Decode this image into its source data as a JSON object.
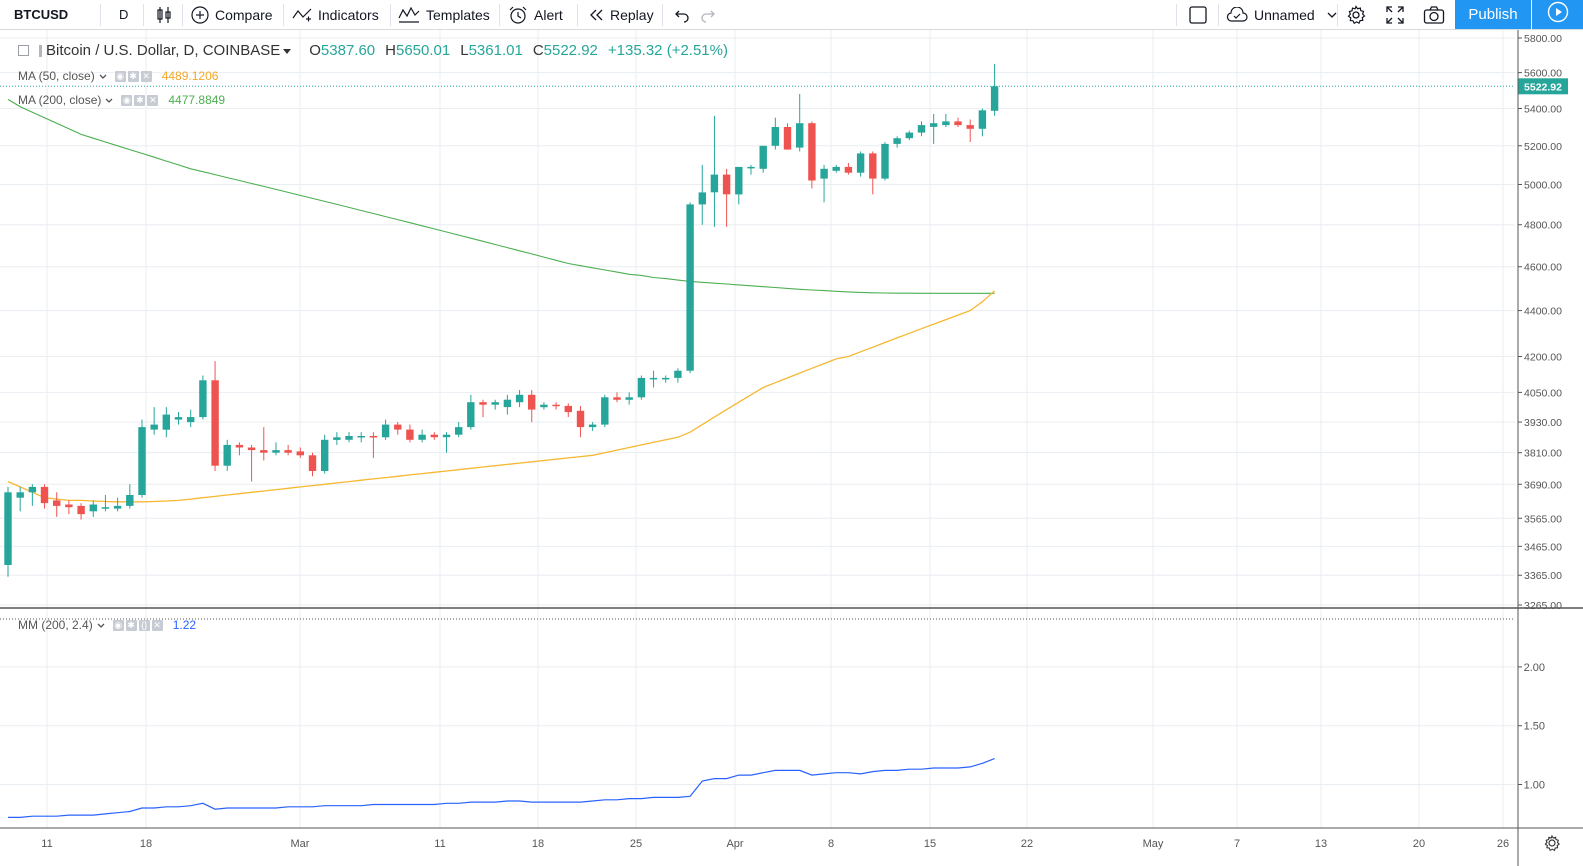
{
  "toolbar": {
    "symbol": "BTCUSD",
    "interval": "D",
    "compare": "Compare",
    "indicators": "Indicators",
    "templates": "Templates",
    "alert": "Alert",
    "replay": "Replay",
    "layout_name": "Unnamed",
    "publish": "Publish"
  },
  "legend": {
    "title": "Bitcoin / U.S. Dollar, D, COINBASE",
    "o_key": "O",
    "o_val": "5387.60",
    "h_key": "H",
    "h_val": "5650.01",
    "l_key": "L",
    "l_val": "5361.01",
    "c_key": "C",
    "c_val": "5522.92",
    "change": "+135.32 (+2.51%)",
    "ma50_label": "MA (50, close)",
    "ma50_value": "4489.1206",
    "ma200_label": "MA (200, close)",
    "ma200_value": "4477.8849",
    "mm_label": "MM (200, 2.4)",
    "mm_value": "1.22"
  },
  "colors": {
    "up": "#26a69a",
    "down": "#ef5350",
    "ma50": "#f7b731",
    "ma200": "#4caf50",
    "mm": "#2962ff",
    "grid": "#e9eef2",
    "accent": "#2196f3"
  },
  "price_axis_labels": [
    "5800.00",
    "5600.00",
    "5400.00",
    "5200.00",
    "5000.00",
    "4800.00",
    "4600.00",
    "4400.00",
    "4200.00",
    "4050.00",
    "3930.00",
    "3810.00",
    "3690.00",
    "3565.00",
    "3465.00",
    "3365.00",
    "3265.00"
  ],
  "last_price_label": "5522.92",
  "indicator_axis_labels": [
    "2.00",
    "1.50",
    "1.00"
  ],
  "time_axis_labels": [
    "11",
    "18",
    "Mar",
    "11",
    "18",
    "25",
    "Apr",
    "8",
    "15",
    "22",
    "May",
    "7",
    "13",
    "20",
    "26"
  ],
  "chart_data": {
    "type": "candlestick",
    "title": "Bitcoin / U.S. Dollar, D, COINBASE",
    "price_scale": "log",
    "ylim": [
      3265,
      5800
    ],
    "candles": [
      {
        "o": 3400,
        "h": 3680,
        "l": 3360,
        "c": 3660
      },
      {
        "o": 3640,
        "h": 3680,
        "l": 3590,
        "c": 3660
      },
      {
        "o": 3660,
        "h": 3690,
        "l": 3610,
        "c": 3680
      },
      {
        "o": 3680,
        "h": 3690,
        "l": 3600,
        "c": 3620
      },
      {
        "o": 3630,
        "h": 3660,
        "l": 3570,
        "c": 3610
      },
      {
        "o": 3615,
        "h": 3630,
        "l": 3580,
        "c": 3605
      },
      {
        "o": 3610,
        "h": 3620,
        "l": 3560,
        "c": 3580
      },
      {
        "o": 3590,
        "h": 3630,
        "l": 3570,
        "c": 3615
      },
      {
        "o": 3600,
        "h": 3650,
        "l": 3590,
        "c": 3605
      },
      {
        "o": 3600,
        "h": 3640,
        "l": 3590,
        "c": 3610
      },
      {
        "o": 3610,
        "h": 3690,
        "l": 3600,
        "c": 3650
      },
      {
        "o": 3650,
        "h": 3940,
        "l": 3640,
        "c": 3910
      },
      {
        "o": 3900,
        "h": 3990,
        "l": 3880,
        "c": 3920
      },
      {
        "o": 3900,
        "h": 3990,
        "l": 3870,
        "c": 3960
      },
      {
        "o": 3940,
        "h": 3970,
        "l": 3920,
        "c": 3950
      },
      {
        "o": 3930,
        "h": 3980,
        "l": 3910,
        "c": 3950
      },
      {
        "o": 3950,
        "h": 4120,
        "l": 3940,
        "c": 4100
      },
      {
        "o": 4100,
        "h": 4180,
        "l": 3740,
        "c": 3760
      },
      {
        "o": 3760,
        "h": 3860,
        "l": 3740,
        "c": 3840
      },
      {
        "o": 3840,
        "h": 3850,
        "l": 3800,
        "c": 3830
      },
      {
        "o": 3830,
        "h": 3840,
        "l": 3700,
        "c": 3820
      },
      {
        "o": 3820,
        "h": 3910,
        "l": 3780,
        "c": 3810
      },
      {
        "o": 3810,
        "h": 3850,
        "l": 3800,
        "c": 3820
      },
      {
        "o": 3820,
        "h": 3840,
        "l": 3800,
        "c": 3810
      },
      {
        "o": 3815,
        "h": 3830,
        "l": 3790,
        "c": 3800
      },
      {
        "o": 3800,
        "h": 3810,
        "l": 3720,
        "c": 3740
      },
      {
        "o": 3740,
        "h": 3880,
        "l": 3730,
        "c": 3860
      },
      {
        "o": 3860,
        "h": 3890,
        "l": 3840,
        "c": 3870
      },
      {
        "o": 3860,
        "h": 3890,
        "l": 3850,
        "c": 3875
      },
      {
        "o": 3870,
        "h": 3890,
        "l": 3850,
        "c": 3875
      },
      {
        "o": 3875,
        "h": 3890,
        "l": 3790,
        "c": 3870
      },
      {
        "o": 3870,
        "h": 3940,
        "l": 3860,
        "c": 3920
      },
      {
        "o": 3920,
        "h": 3930,
        "l": 3880,
        "c": 3900
      },
      {
        "o": 3900,
        "h": 3920,
        "l": 3850,
        "c": 3860
      },
      {
        "o": 3860,
        "h": 3900,
        "l": 3850,
        "c": 3880
      },
      {
        "o": 3880,
        "h": 3890,
        "l": 3860,
        "c": 3870
      },
      {
        "o": 3870,
        "h": 3890,
        "l": 3810,
        "c": 3880
      },
      {
        "o": 3880,
        "h": 3930,
        "l": 3870,
        "c": 3910
      },
      {
        "o": 3910,
        "h": 4040,
        "l": 3900,
        "c": 4010
      },
      {
        "o": 4010,
        "h": 4020,
        "l": 3950,
        "c": 4000
      },
      {
        "o": 4000,
        "h": 4020,
        "l": 3980,
        "c": 4010
      },
      {
        "o": 3990,
        "h": 4040,
        "l": 3960,
        "c": 4020
      },
      {
        "o": 4010,
        "h": 4060,
        "l": 3990,
        "c": 4040
      },
      {
        "o": 4040,
        "h": 4060,
        "l": 3930,
        "c": 3980
      },
      {
        "o": 3990,
        "h": 4010,
        "l": 3980,
        "c": 4000
      },
      {
        "o": 4000,
        "h": 4010,
        "l": 3980,
        "c": 3995
      },
      {
        "o": 3995,
        "h": 4005,
        "l": 3950,
        "c": 3970
      },
      {
        "o": 3975,
        "h": 3995,
        "l": 3870,
        "c": 3910
      },
      {
        "o": 3910,
        "h": 3930,
        "l": 3895,
        "c": 3920
      },
      {
        "o": 3920,
        "h": 4040,
        "l": 3910,
        "c": 4030
      },
      {
        "o": 4030,
        "h": 4050,
        "l": 4010,
        "c": 4020
      },
      {
        "o": 4020,
        "h": 4050,
        "l": 4000,
        "c": 4030
      },
      {
        "o": 4030,
        "h": 4120,
        "l": 4020,
        "c": 4110
      },
      {
        "o": 4110,
        "h": 4140,
        "l": 4070,
        "c": 4110
      },
      {
        "o": 4105,
        "h": 4120,
        "l": 4090,
        "c": 4110
      },
      {
        "o": 4110,
        "h": 4150,
        "l": 4090,
        "c": 4140
      },
      {
        "o": 4140,
        "h": 4910,
        "l": 4130,
        "c": 4900
      },
      {
        "o": 4900,
        "h": 5100,
        "l": 4800,
        "c": 4960
      },
      {
        "o": 4960,
        "h": 5360,
        "l": 4790,
        "c": 5050
      },
      {
        "o": 5050,
        "h": 5080,
        "l": 4790,
        "c": 4950
      },
      {
        "o": 4950,
        "h": 5080,
        "l": 4900,
        "c": 5090
      },
      {
        "o": 5090,
        "h": 5100,
        "l": 5050,
        "c": 5090
      },
      {
        "o": 5080,
        "h": 5200,
        "l": 5060,
        "c": 5200
      },
      {
        "o": 5200,
        "h": 5350,
        "l": 5180,
        "c": 5300
      },
      {
        "o": 5300,
        "h": 5320,
        "l": 5180,
        "c": 5180
      },
      {
        "o": 5190,
        "h": 5480,
        "l": 5170,
        "c": 5320
      },
      {
        "o": 5320,
        "h": 5330,
        "l": 4980,
        "c": 5020
      },
      {
        "o": 5030,
        "h": 5100,
        "l": 4910,
        "c": 5080
      },
      {
        "o": 5070,
        "h": 5100,
        "l": 5060,
        "c": 5090
      },
      {
        "o": 5090,
        "h": 5110,
        "l": 5050,
        "c": 5060
      },
      {
        "o": 5060,
        "h": 5170,
        "l": 5040,
        "c": 5160
      },
      {
        "o": 5160,
        "h": 5170,
        "l": 4950,
        "c": 5030
      },
      {
        "o": 5030,
        "h": 5220,
        "l": 5020,
        "c": 5210
      },
      {
        "o": 5210,
        "h": 5250,
        "l": 5190,
        "c": 5240
      },
      {
        "o": 5240,
        "h": 5280,
        "l": 5230,
        "c": 5270
      },
      {
        "o": 5270,
        "h": 5330,
        "l": 5250,
        "c": 5310
      },
      {
        "o": 5300,
        "h": 5370,
        "l": 5210,
        "c": 5320
      },
      {
        "o": 5310,
        "h": 5370,
        "l": 5300,
        "c": 5330
      },
      {
        "o": 5330,
        "h": 5350,
        "l": 5300,
        "c": 5310
      },
      {
        "o": 5310,
        "h": 5340,
        "l": 5220,
        "c": 5290
      },
      {
        "o": 5290,
        "h": 5400,
        "l": 5250,
        "c": 5390
      },
      {
        "o": 5387.6,
        "h": 5650.01,
        "l": 5361.01,
        "c": 5522.92
      }
    ],
    "ma50": [
      3700,
      3680,
      3660,
      3640,
      3635,
      3630,
      3630,
      3628,
      3626,
      3625,
      3625,
      3625,
      3626,
      3628,
      3630,
      3635,
      3640,
      3645,
      3650,
      3655,
      3660,
      3665,
      3670,
      3675,
      3680,
      3685,
      3690,
      3695,
      3700,
      3705,
      3710,
      3715,
      3720,
      3725,
      3730,
      3735,
      3740,
      3745,
      3750,
      3755,
      3760,
      3765,
      3770,
      3775,
      3780,
      3785,
      3790,
      3795,
      3800,
      3810,
      3820,
      3830,
      3840,
      3850,
      3860,
      3870,
      3890,
      3920,
      3950,
      3980,
      4010,
      4040,
      4070,
      4090,
      4110,
      4130,
      4150,
      4170,
      4190,
      4200,
      4220,
      4240,
      4260,
      4280,
      4300,
      4320,
      4340,
      4360,
      4380,
      4400,
      4440,
      4489.12
    ],
    "ma200": [
      5450,
      5410,
      5380,
      5350,
      5320,
      5290,
      5260,
      5240,
      5220,
      5200,
      5180,
      5160,
      5140,
      5120,
      5100,
      5080,
      5065,
      5050,
      5035,
      5020,
      5005,
      4990,
      4975,
      4960,
      4945,
      4930,
      4915,
      4900,
      4885,
      4870,
      4855,
      4840,
      4825,
      4810,
      4795,
      4780,
      4765,
      4750,
      4735,
      4720,
      4705,
      4690,
      4675,
      4660,
      4645,
      4630,
      4615,
      4605,
      4595,
      4585,
      4575,
      4565,
      4560,
      4550,
      4545,
      4538,
      4532,
      4528,
      4524,
      4520,
      4516,
      4512,
      4508,
      4504,
      4500,
      4496,
      4493,
      4490,
      4487,
      4484,
      4482,
      4480,
      4479,
      4478.5,
      4478.2,
      4478,
      4478,
      4477.95,
      4477.9,
      4477.89,
      4477.888,
      4477.8849
    ],
    "mm": [
      0.72,
      0.72,
      0.73,
      0.73,
      0.73,
      0.74,
      0.74,
      0.74,
      0.75,
      0.76,
      0.77,
      0.8,
      0.8,
      0.81,
      0.81,
      0.82,
      0.84,
      0.79,
      0.8,
      0.8,
      0.8,
      0.8,
      0.8,
      0.81,
      0.81,
      0.81,
      0.82,
      0.82,
      0.82,
      0.82,
      0.83,
      0.83,
      0.83,
      0.83,
      0.83,
      0.83,
      0.84,
      0.84,
      0.85,
      0.85,
      0.85,
      0.86,
      0.86,
      0.85,
      0.85,
      0.85,
      0.85,
      0.85,
      0.86,
      0.87,
      0.87,
      0.88,
      0.88,
      0.89,
      0.89,
      0.89,
      0.9,
      1.03,
      1.05,
      1.05,
      1.08,
      1.08,
      1.1,
      1.12,
      1.12,
      1.12,
      1.08,
      1.09,
      1.1,
      1.1,
      1.09,
      1.11,
      1.12,
      1.12,
      1.13,
      1.13,
      1.14,
      1.14,
      1.14,
      1.15,
      1.18,
      1.22
    ],
    "mm_ylim": [
      0.63,
      2.45
    ]
  }
}
